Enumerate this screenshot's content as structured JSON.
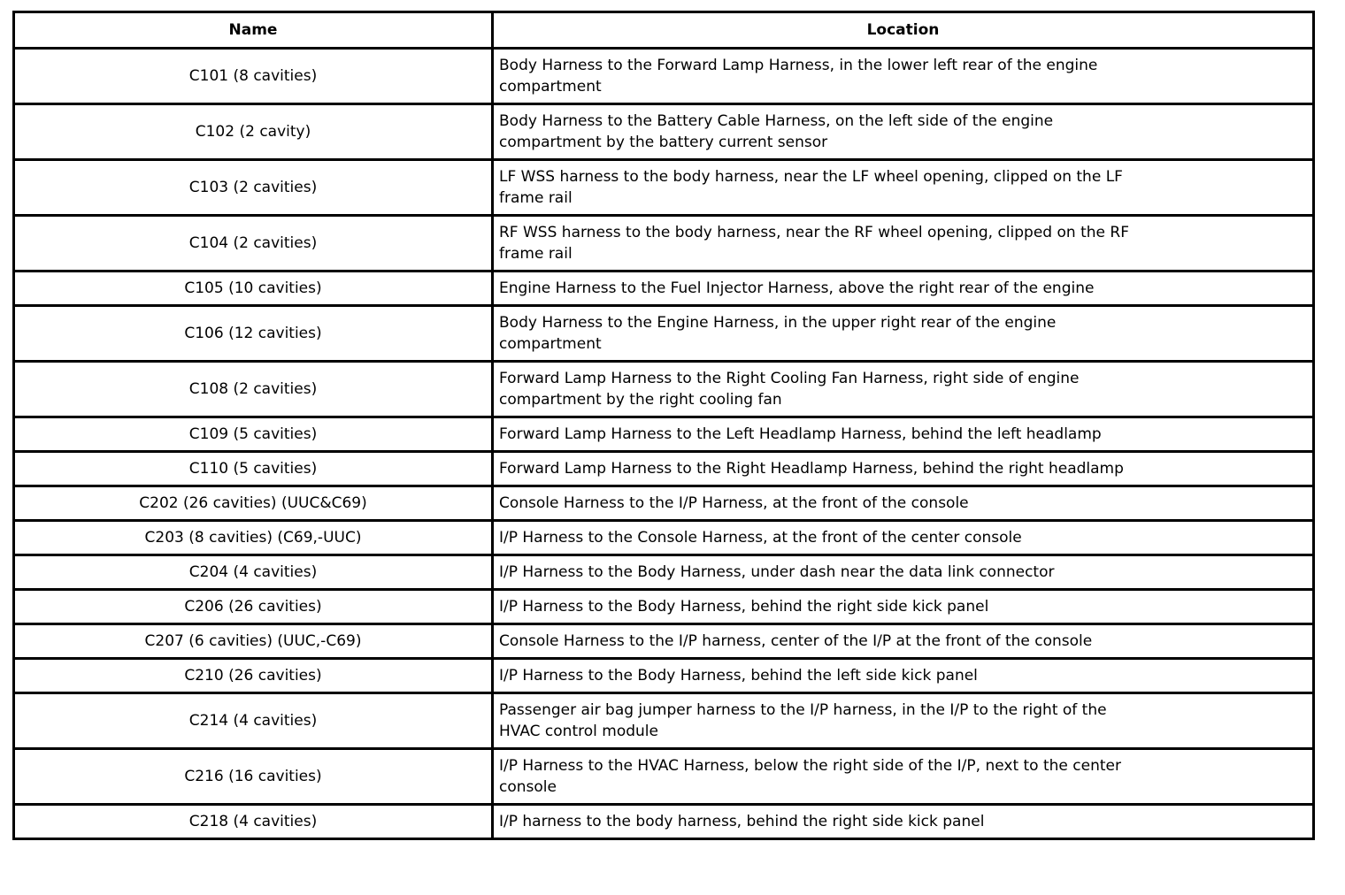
{
  "table": {
    "columns": [
      "Name",
      "Location"
    ],
    "rows": [
      {
        "name": "C101 (8 cavities)",
        "location": "Body Harness to the Forward Lamp Harness, in the lower left rear of the engine\ncompartment"
      },
      {
        "name": "C102 (2 cavity)",
        "location": "Body Harness to the Battery Cable Harness, on the left side of the engine\ncompartment by the battery current sensor"
      },
      {
        "name": "C103 (2 cavities)",
        "location": "LF WSS harness to the body harness, near the LF wheel opening, clipped on the LF\nframe rail"
      },
      {
        "name": "C104 (2 cavities)",
        "location": "RF WSS harness to the body harness, near the RF wheel opening, clipped on the RF\nframe rail"
      },
      {
        "name": "C105 (10 cavities)",
        "location": "Engine Harness to the Fuel Injector Harness, above the right rear of the engine"
      },
      {
        "name": "C106 (12 cavities)",
        "location": "Body Harness to the Engine Harness, in the upper right rear of the engine\ncompartment"
      },
      {
        "name": "C108 (2 cavities)",
        "location": "Forward Lamp Harness to the Right Cooling Fan Harness, right side of engine\ncompartment by the right cooling fan"
      },
      {
        "name": "C109 (5 cavities)",
        "location": "Forward Lamp Harness to the Left Headlamp Harness, behind the left headlamp"
      },
      {
        "name": "C110 (5 cavities)",
        "location": "Forward Lamp Harness to the Right Headlamp Harness, behind the right headlamp"
      },
      {
        "name": "C202 (26 cavities) (UUC&C69)",
        "location": "Console Harness to the I/P Harness, at the front of the console"
      },
      {
        "name": "C203 (8 cavities) (C69,-UUC)",
        "location": "I/P Harness to the Console Harness, at the front of the center console"
      },
      {
        "name": "C204 (4 cavities)",
        "location": "I/P Harness to the Body Harness, under dash near the data link connector"
      },
      {
        "name": "C206 (26 cavities)",
        "location": "I/P Harness to the Body Harness, behind the right side kick panel"
      },
      {
        "name": "C207 (6 cavities) (UUC,-C69)",
        "location": "Console Harness to the I/P harness, center of the I/P at the front of the console"
      },
      {
        "name": "C210 (26 cavities)",
        "location": "I/P Harness to the Body Harness, behind the left side kick panel"
      },
      {
        "name": "C214 (4 cavities)",
        "location": "Passenger air bag jumper harness to the I/P harness, in the I/P to the right of the\nHVAC control module"
      },
      {
        "name": "C216 (16 cavities)",
        "location": "I/P Harness to the HVAC Harness, below the right side of the I/P, next to the center\nconsole"
      },
      {
        "name": "C218 (4 cavities)",
        "location": "I/P harness to the body harness, behind the right side kick panel"
      }
    ]
  }
}
